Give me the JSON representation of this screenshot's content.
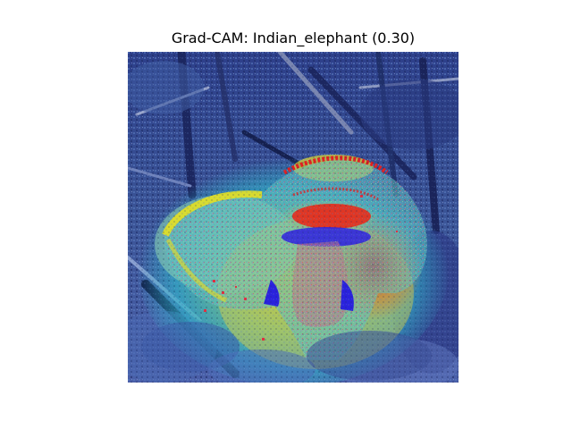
{
  "figure": {
    "title": "Grad-CAM: Indian_elephant (0.30)"
  },
  "image": {
    "subject": "elephant-in-forest",
    "overlay": "grad-cam-heatmap",
    "colors": {
      "background_forest": "#3a4f8f",
      "heat_low": "#2fb3c9",
      "heat_mid": "#e8e030",
      "heat_high": "#e82a1a",
      "eye_patch": "#3322dd"
    }
  }
}
